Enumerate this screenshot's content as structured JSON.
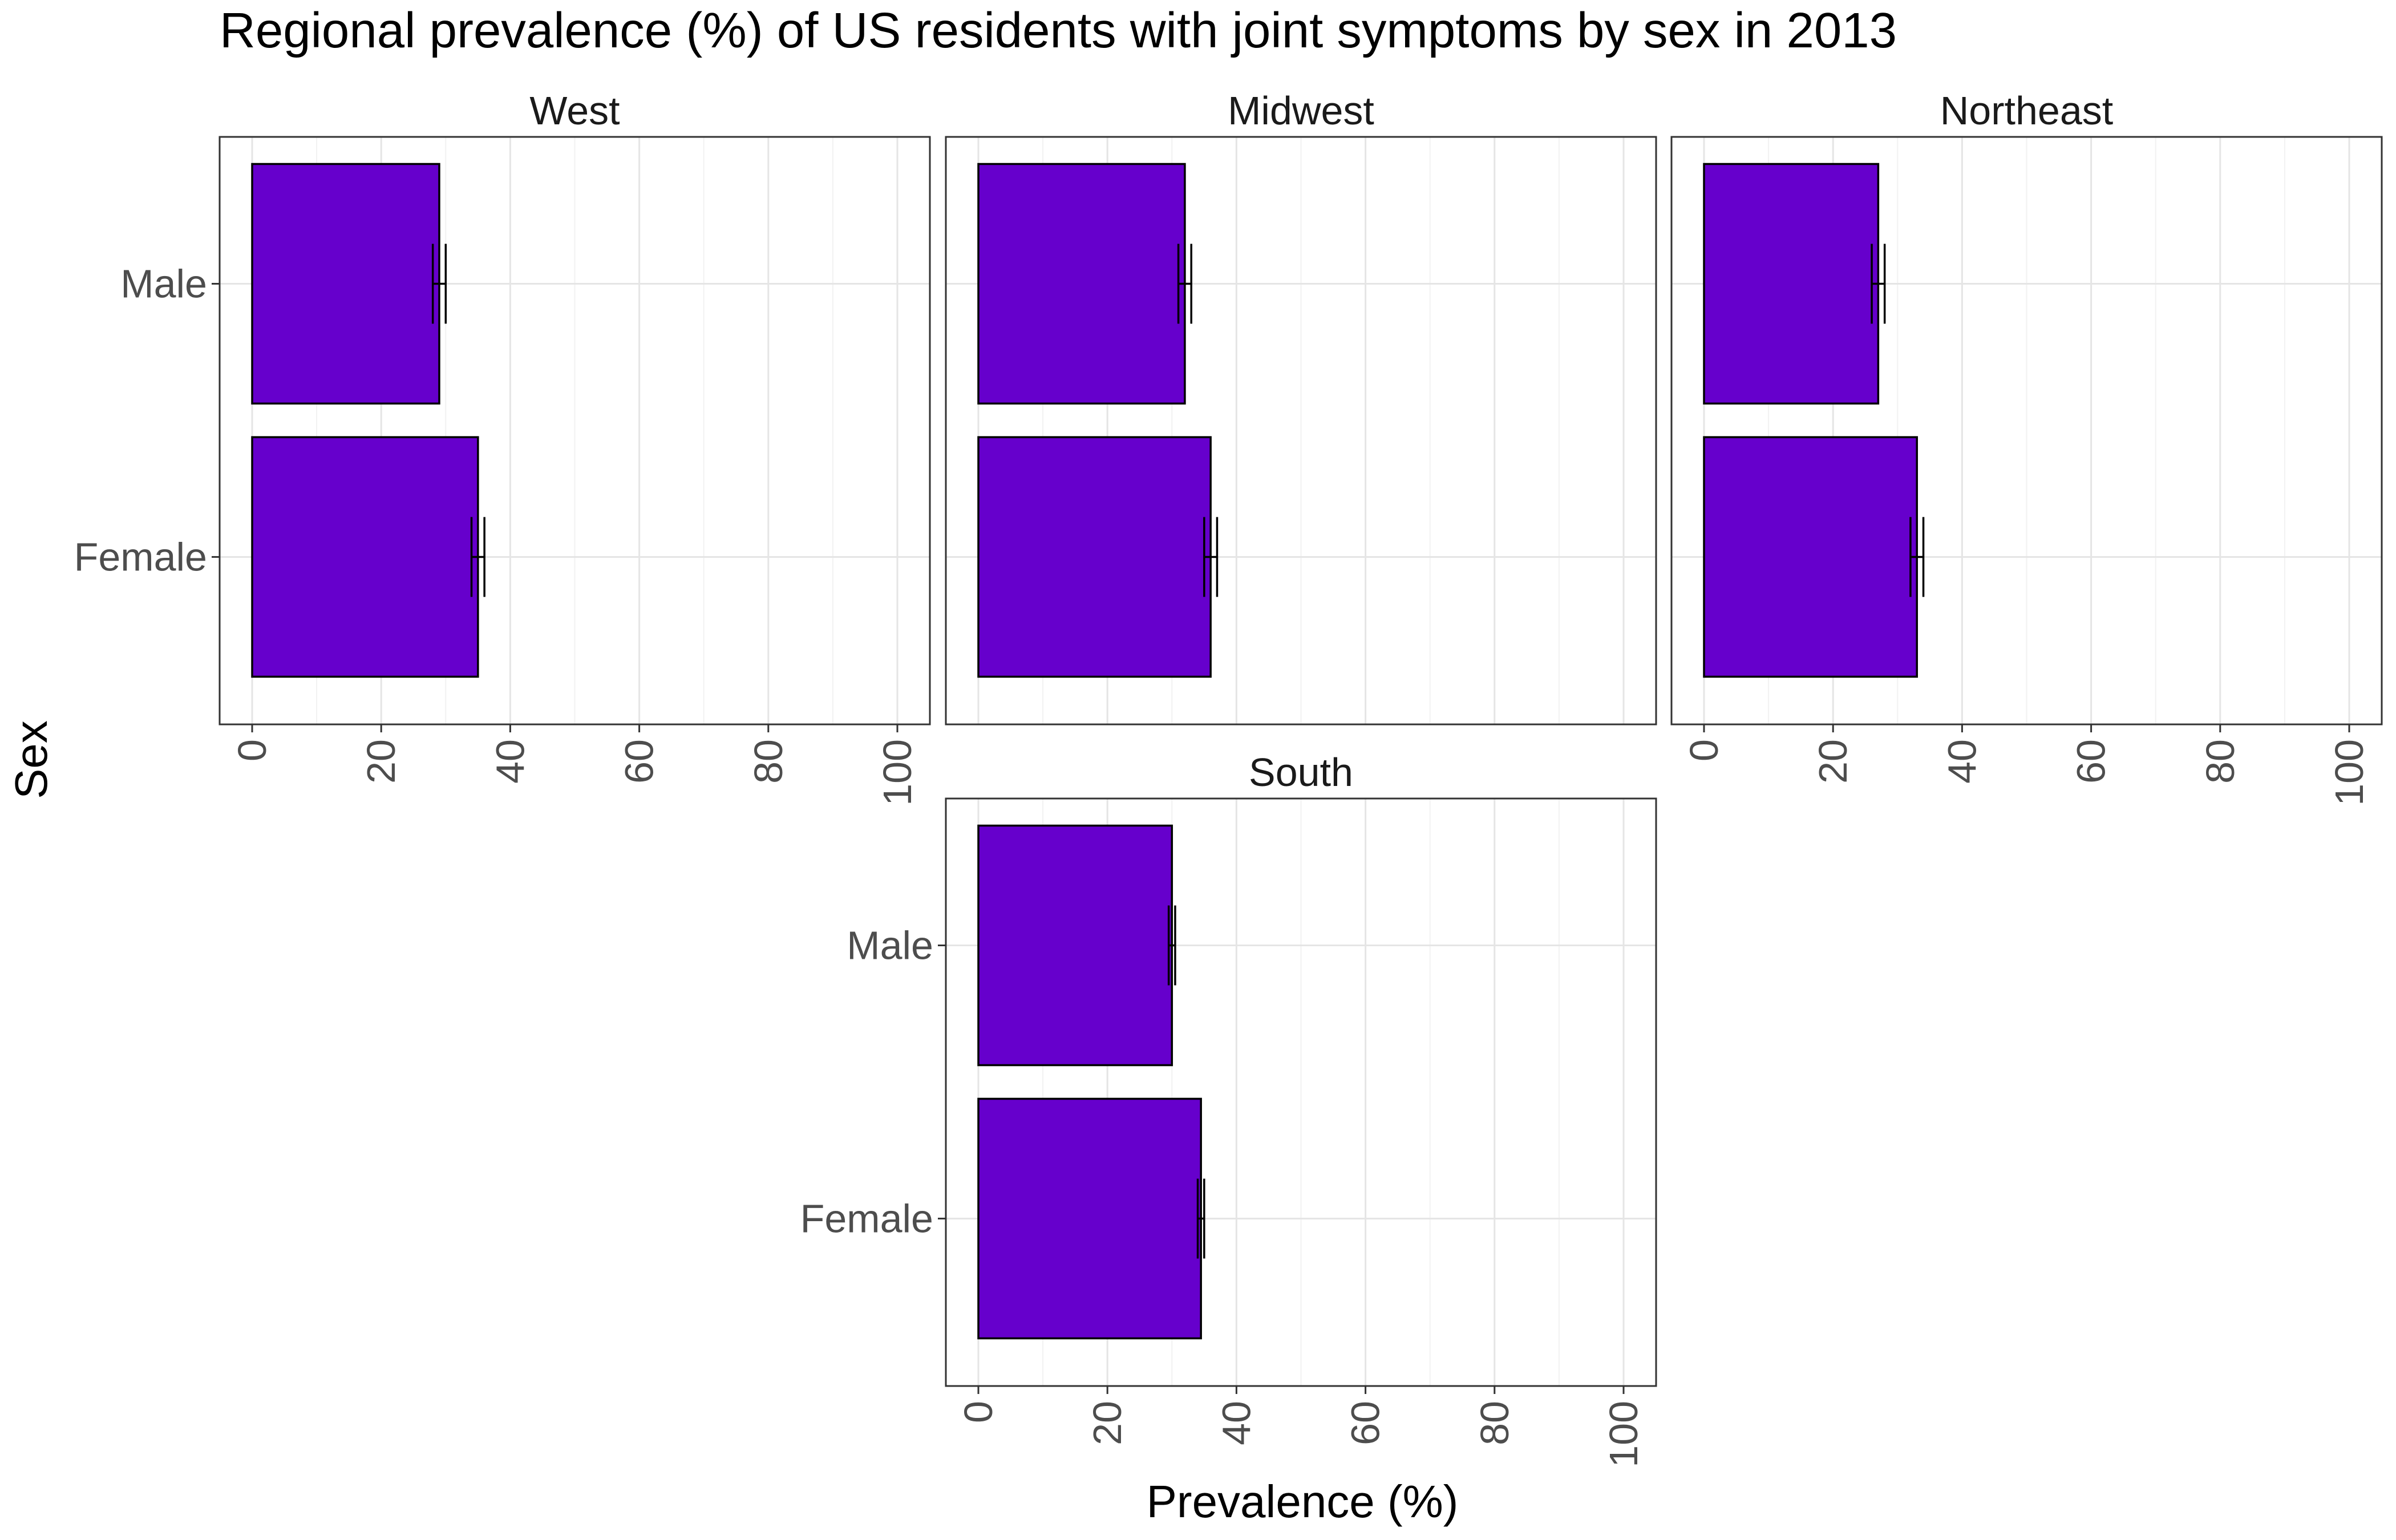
{
  "chart_data": {
    "type": "bar",
    "orientation": "horizontal",
    "title": "Regional prevalence (%) of US residents with joint symptoms by sex in 2013",
    "xlabel": "Prevalence (%)",
    "ylabel": "Sex",
    "xlim": [
      0,
      100
    ],
    "x_ticks": [
      "0",
      "20",
      "40",
      "60",
      "80",
      "100"
    ],
    "categories": [
      "Male",
      "Female"
    ],
    "grid": true,
    "bar_color": "#6600cc",
    "panels": [
      {
        "name": "West",
        "values": [
          {
            "category": "Male",
            "value": 29,
            "ci": [
              28,
              30
            ]
          },
          {
            "category": "Female",
            "value": 35,
            "ci": [
              34,
              36
            ]
          }
        ]
      },
      {
        "name": "Midwest",
        "values": [
          {
            "category": "Male",
            "value": 32,
            "ci": [
              31,
              33
            ]
          },
          {
            "category": "Female",
            "value": 36,
            "ci": [
              35,
              37
            ]
          }
        ]
      },
      {
        "name": "Northeast",
        "values": [
          {
            "category": "Male",
            "value": 27,
            "ci": [
              26,
              28
            ]
          },
          {
            "category": "Female",
            "value": 33,
            "ci": [
              32,
              34
            ]
          }
        ]
      },
      {
        "name": "South",
        "values": [
          {
            "category": "Male",
            "value": 30,
            "ci": [
              29.5,
              30.5
            ]
          },
          {
            "category": "Female",
            "value": 34.5,
            "ci": [
              34,
              35
            ]
          }
        ]
      }
    ]
  }
}
